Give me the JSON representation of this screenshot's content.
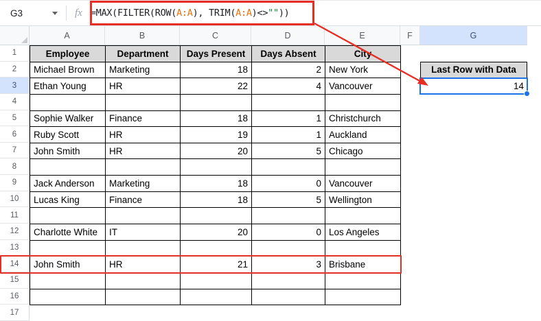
{
  "name_box": {
    "value": "G3"
  },
  "formula_bar": {
    "fx_icon": "fx",
    "formula_full": "=MAX(FILTER(ROW(A:A), TRIM(A:A)<>\"\"))",
    "segments": [
      {
        "text": "=MAX(FILTER(ROW(",
        "color": "#202124"
      },
      {
        "text": "A:A",
        "color": "#e8710a"
      },
      {
        "text": "), TRIM(",
        "color": "#202124"
      },
      {
        "text": "A:A",
        "color": "#e8710a"
      },
      {
        "text": ")<>",
        "color": "#202124"
      },
      {
        "text": "\"\"",
        "color": "#188038"
      },
      {
        "text": "))",
        "color": "#202124"
      }
    ]
  },
  "grid": {
    "column_letters": [
      "A",
      "B",
      "C",
      "D",
      "E",
      "F",
      "G"
    ],
    "row_numbers": [
      "1",
      "2",
      "3",
      "4",
      "5",
      "6",
      "7",
      "8",
      "9",
      "10",
      "11",
      "12",
      "13",
      "14",
      "15",
      "16",
      "17"
    ],
    "selected_cell": "G3",
    "selected_column": "G",
    "selected_row": "3"
  },
  "table": {
    "headers": [
      "Employee",
      "Department",
      "Days Present",
      "Days Absent",
      "City"
    ],
    "rows": [
      {
        "row": 2,
        "cells": [
          "Michael Brown",
          "Marketing",
          "18",
          "2",
          "New York"
        ]
      },
      {
        "row": 3,
        "cells": [
          "Ethan Young",
          "HR",
          "22",
          "4",
          "Vancouver"
        ]
      },
      {
        "row": 4,
        "cells": [
          "",
          "",
          "",
          "",
          ""
        ]
      },
      {
        "row": 5,
        "cells": [
          "Sophie Walker",
          "Finance",
          "18",
          "1",
          "Christchurch"
        ]
      },
      {
        "row": 6,
        "cells": [
          "Ruby Scott",
          "HR",
          "19",
          "1",
          "Auckland"
        ]
      },
      {
        "row": 7,
        "cells": [
          "John Smith",
          "HR",
          "20",
          "5",
          "Chicago"
        ]
      },
      {
        "row": 8,
        "cells": [
          "",
          "",
          "",
          "",
          ""
        ]
      },
      {
        "row": 9,
        "cells": [
          "Jack Anderson",
          "Marketing",
          "18",
          "0",
          "Vancouver"
        ]
      },
      {
        "row": 10,
        "cells": [
          "Lucas King",
          "Finance",
          "18",
          "5",
          "Wellington"
        ]
      },
      {
        "row": 11,
        "cells": [
          "",
          "",
          "",
          "",
          ""
        ]
      },
      {
        "row": 12,
        "cells": [
          "Charlotte White",
          "IT",
          "20",
          "0",
          "Los Angeles"
        ]
      },
      {
        "row": 13,
        "cells": [
          "",
          "",
          "",
          "",
          ""
        ]
      },
      {
        "row": 14,
        "cells": [
          "John Smith",
          "HR",
          "21",
          "3",
          "Brisbane"
        ]
      },
      {
        "row": 15,
        "cells": [
          "",
          "",
          "",
          "",
          ""
        ]
      },
      {
        "row": 16,
        "cells": [
          "",
          "",
          "",
          "",
          ""
        ]
      }
    ]
  },
  "result": {
    "label": "Last Row with Data",
    "value": "14",
    "cell": "G3"
  },
  "annotations": {
    "highlighted_row": "14",
    "arrow_target_cell": "G3"
  },
  "colors": {
    "annotation_red": "#e62e24",
    "selection_blue": "#1a73e8",
    "selected_header_bg": "#d3e3fd",
    "table_header_fill": "#d9d9d9",
    "formula_range_orange": "#e8710a",
    "formula_string_green": "#188038"
  }
}
